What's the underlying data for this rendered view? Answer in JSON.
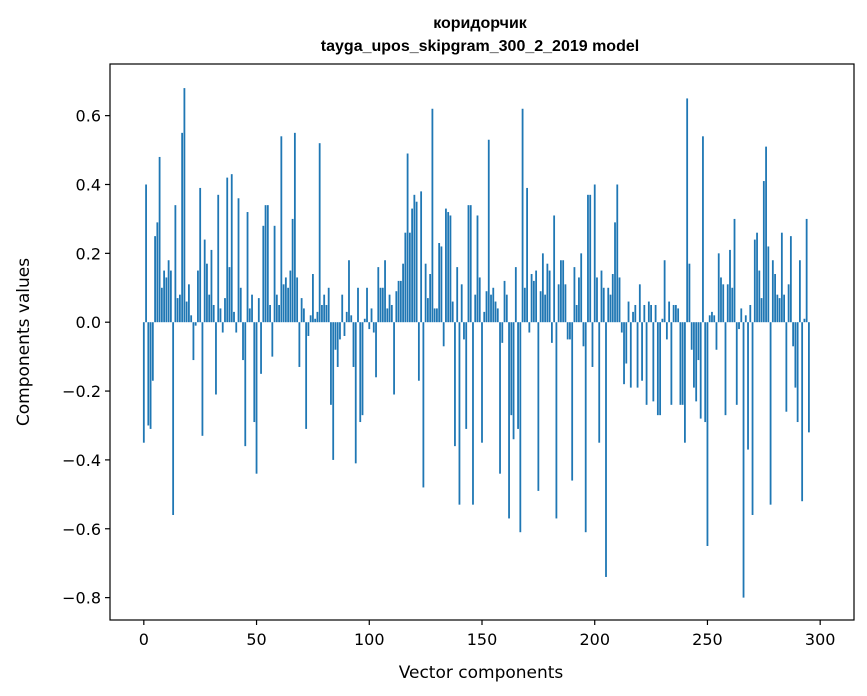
{
  "chart_data": {
    "type": "bar",
    "title": "коридорчик",
    "subtitle": "tayga_upos_skipgram_300_2_2019 model",
    "xlabel": "Vector components",
    "ylabel": "Components values",
    "xlim": [
      -15,
      315
    ],
    "ylim": [
      -0.865,
      0.75
    ],
    "xticks": [
      0,
      50,
      100,
      150,
      200,
      250,
      300
    ],
    "yticks": [
      -0.8,
      -0.6,
      -0.4,
      -0.2,
      0.0,
      0.2,
      0.4,
      0.6
    ],
    "ytick_labels": [
      "−0.8",
      "−0.6",
      "−0.4",
      "−0.2",
      "0.0",
      "0.2",
      "0.4",
      "0.6"
    ],
    "bar_color": "#1f77b4",
    "values": [
      -0.35,
      0.4,
      -0.3,
      -0.31,
      -0.17,
      0.25,
      0.29,
      0.48,
      0.1,
      0.15,
      0.13,
      0.18,
      0.15,
      -0.56,
      0.34,
      0.07,
      0.08,
      0.55,
      0.68,
      0.06,
      0.11,
      0.02,
      -0.11,
      -0.01,
      0.15,
      0.39,
      -0.33,
      0.24,
      0.17,
      0.08,
      0.21,
      0.05,
      -0.21,
      0.37,
      0.04,
      -0.03,
      0.07,
      0.42,
      0.16,
      0.43,
      0.03,
      -0.03,
      0.36,
      0.1,
      -0.11,
      -0.36,
      0.32,
      0.04,
      0.08,
      -0.29,
      -0.44,
      0.07,
      -0.15,
      0.28,
      0.34,
      0.34,
      0.05,
      -0.1,
      0.28,
      0.08,
      0.05,
      0.54,
      0.11,
      0.13,
      0.1,
      0.15,
      0.3,
      0.55,
      0.13,
      -0.13,
      0.07,
      0.04,
      -0.31,
      -0.04,
      0.02,
      0.14,
      0.01,
      0.03,
      0.52,
      0.05,
      0.08,
      0.05,
      0.1,
      -0.24,
      -0.4,
      -0.08,
      -0.13,
      -0.05,
      0.08,
      -0.04,
      0.03,
      0.18,
      0.02,
      -0.13,
      -0.41,
      0.1,
      -0.29,
      -0.27,
      0.01,
      0.1,
      -0.02,
      0.04,
      -0.03,
      -0.16,
      0.16,
      0.1,
      0.1,
      0.18,
      0.04,
      0.08,
      0.05,
      -0.21,
      0.09,
      0.12,
      0.12,
      0.17,
      0.26,
      0.49,
      0.26,
      0.33,
      0.37,
      0.35,
      -0.17,
      0.38,
      -0.48,
      0.17,
      0.07,
      0.14,
      0.62,
      0.04,
      0.04,
      0.23,
      0.22,
      -0.07,
      0.33,
      0.32,
      0.31,
      0.06,
      -0.36,
      0.16,
      -0.53,
      0.11,
      -0.05,
      -0.31,
      0.34,
      0.34,
      -0.53,
      0.08,
      0.31,
      0.13,
      -0.35,
      0.03,
      0.09,
      0.53,
      0.08,
      0.1,
      0.06,
      0.04,
      -0.44,
      -0.06,
      0.12,
      0.08,
      -0.57,
      -0.27,
      -0.34,
      0.16,
      -0.31,
      -0.61,
      0.62,
      0.1,
      0.39,
      -0.03,
      0.14,
      0.12,
      0.15,
      -0.49,
      0.09,
      0.2,
      0.08,
      0.17,
      0.15,
      -0.06,
      0.31,
      -0.57,
      0.11,
      0.18,
      0.18,
      0.11,
      -0.05,
      -0.05,
      -0.46,
      0.16,
      0.05,
      0.13,
      0.2,
      -0.07,
      -0.61,
      0.37,
      0.37,
      -0.13,
      0.4,
      0.13,
      -0.35,
      0.15,
      0.1,
      -0.74,
      0.1,
      0.08,
      0.14,
      0.29,
      0.4,
      0.13,
      -0.03,
      -0.18,
      -0.12,
      0.06,
      -0.19,
      0.03,
      0.05,
      -0.19,
      0.11,
      -0.17,
      0.05,
      -0.24,
      0.06,
      0.05,
      -0.23,
      0.05,
      -0.27,
      -0.27,
      0.01,
      0.18,
      -0.05,
      0.06,
      -0.24,
      0.05,
      0.05,
      0.04,
      -0.24,
      -0.24,
      -0.35,
      0.65,
      0.17,
      -0.08,
      -0.19,
      -0.23,
      -0.11,
      -0.28,
      0.54,
      -0.29,
      -0.65,
      0.02,
      0.03,
      0.02,
      -0.08,
      0.2,
      0.13,
      0.11,
      -0.27,
      0.11,
      0.21,
      0.1,
      0.3,
      -0.24,
      -0.02,
      0.04,
      -0.8,
      0.02,
      -0.37,
      0.05,
      -0.56,
      0.24,
      0.26,
      0.15,
      0.07,
      0.41,
      0.51,
      0.22,
      -0.53,
      0.18,
      0.14,
      0.08,
      0.07,
      0.26,
      0.08,
      -0.26,
      0.11,
      0.25,
      -0.07,
      -0.19,
      -0.29,
      0.18,
      -0.52,
      0.01,
      0.3,
      -0.32
    ]
  }
}
